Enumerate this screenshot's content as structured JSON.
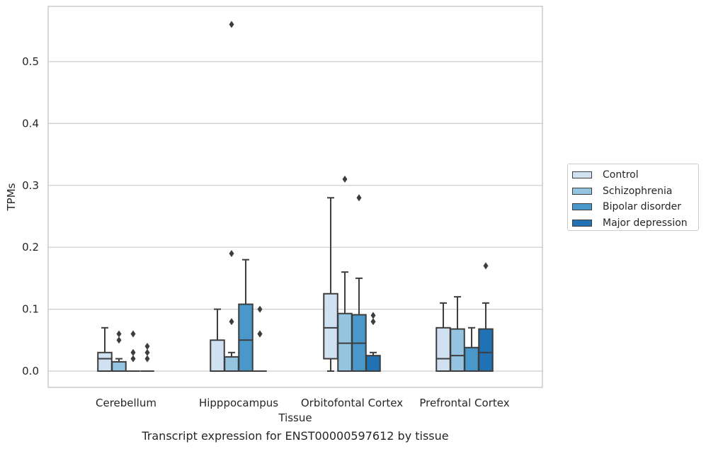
{
  "chart_data": {
    "type": "boxplot",
    "xlabel": "Tissue",
    "ylabel": "TPMs",
    "caption": "Transcript expression for ENST00000597612 by tissue",
    "ylim": [
      -0.027,
      0.59
    ],
    "yticks": [
      0.0,
      0.1,
      0.2,
      0.3,
      0.4,
      0.5
    ],
    "ytick_labels": [
      "0.0",
      "0.1",
      "0.2",
      "0.3",
      "0.4",
      "0.5"
    ],
    "grid": "horizontal",
    "legend_position": "right",
    "categories": [
      "Cerebellum",
      "Hipppocampus",
      "Orbitofontal Cortex",
      "Prefrontal Cortex"
    ],
    "series": [
      {
        "name": "Control",
        "color": "#d0e1f2",
        "boxes": [
          {
            "q1": 0.0,
            "median": 0.02,
            "q3": 0.03,
            "whisker_low": 0.0,
            "whisker_high": 0.07,
            "outliers": []
          },
          {
            "q1": 0.0,
            "median": 0.0,
            "q3": 0.05,
            "whisker_low": 0.0,
            "whisker_high": 0.1,
            "outliers": []
          },
          {
            "q1": 0.02,
            "median": 0.07,
            "q3": 0.125,
            "whisker_low": 0.0,
            "whisker_high": 0.28,
            "outliers": []
          },
          {
            "q1": 0.0,
            "median": 0.02,
            "q3": 0.07,
            "whisker_low": 0.0,
            "whisker_high": 0.11,
            "outliers": []
          }
        ]
      },
      {
        "name": "Schizophrenia",
        "color": "#94c4df",
        "boxes": [
          {
            "q1": 0.0,
            "median": 0.0,
            "q3": 0.015,
            "whisker_low": 0.0,
            "whisker_high": 0.02,
            "outliers": [
              0.05,
              0.06
            ]
          },
          {
            "q1": 0.0,
            "median": 0.0,
            "q3": 0.023,
            "whisker_low": 0.0,
            "whisker_high": 0.03,
            "outliers": [
              0.08,
              0.19,
              0.56
            ]
          },
          {
            "q1": 0.0,
            "median": 0.045,
            "q3": 0.093,
            "whisker_low": 0.0,
            "whisker_high": 0.16,
            "outliers": [
              0.31
            ]
          },
          {
            "q1": 0.0,
            "median": 0.025,
            "q3": 0.068,
            "whisker_low": 0.0,
            "whisker_high": 0.12,
            "outliers": []
          }
        ]
      },
      {
        "name": "Bipolar disorder",
        "color": "#4a98c9",
        "boxes": [
          {
            "q1": 0.0,
            "median": 0.0,
            "q3": 0.0,
            "whisker_low": 0.0,
            "whisker_high": 0.0,
            "outliers": [
              0.02,
              0.03,
              0.06
            ]
          },
          {
            "q1": 0.0,
            "median": 0.05,
            "q3": 0.108,
            "whisker_low": 0.0,
            "whisker_high": 0.18,
            "outliers": []
          },
          {
            "q1": 0.0,
            "median": 0.045,
            "q3": 0.091,
            "whisker_low": 0.0,
            "whisker_high": 0.15,
            "outliers": [
              0.28
            ]
          },
          {
            "q1": 0.0,
            "median": 0.0,
            "q3": 0.038,
            "whisker_low": 0.0,
            "whisker_high": 0.07,
            "outliers": []
          }
        ]
      },
      {
        "name": "Major depression",
        "color": "#2171b5",
        "boxes": [
          {
            "q1": 0.0,
            "median": 0.0,
            "q3": 0.0,
            "whisker_low": 0.0,
            "whisker_high": 0.0,
            "outliers": [
              0.02,
              0.03,
              0.04
            ]
          },
          {
            "q1": 0.0,
            "median": 0.0,
            "q3": 0.0,
            "whisker_low": 0.0,
            "whisker_high": 0.0,
            "outliers": [
              0.06,
              0.06,
              0.1
            ]
          },
          {
            "q1": 0.0,
            "median": 0.0,
            "q3": 0.025,
            "whisker_low": 0.0,
            "whisker_high": 0.03,
            "outliers": [
              0.08,
              0.09
            ]
          },
          {
            "q1": 0.0,
            "median": 0.03,
            "q3": 0.068,
            "whisker_low": 0.0,
            "whisker_high": 0.11,
            "outliers": [
              0.17
            ]
          }
        ]
      }
    ]
  }
}
